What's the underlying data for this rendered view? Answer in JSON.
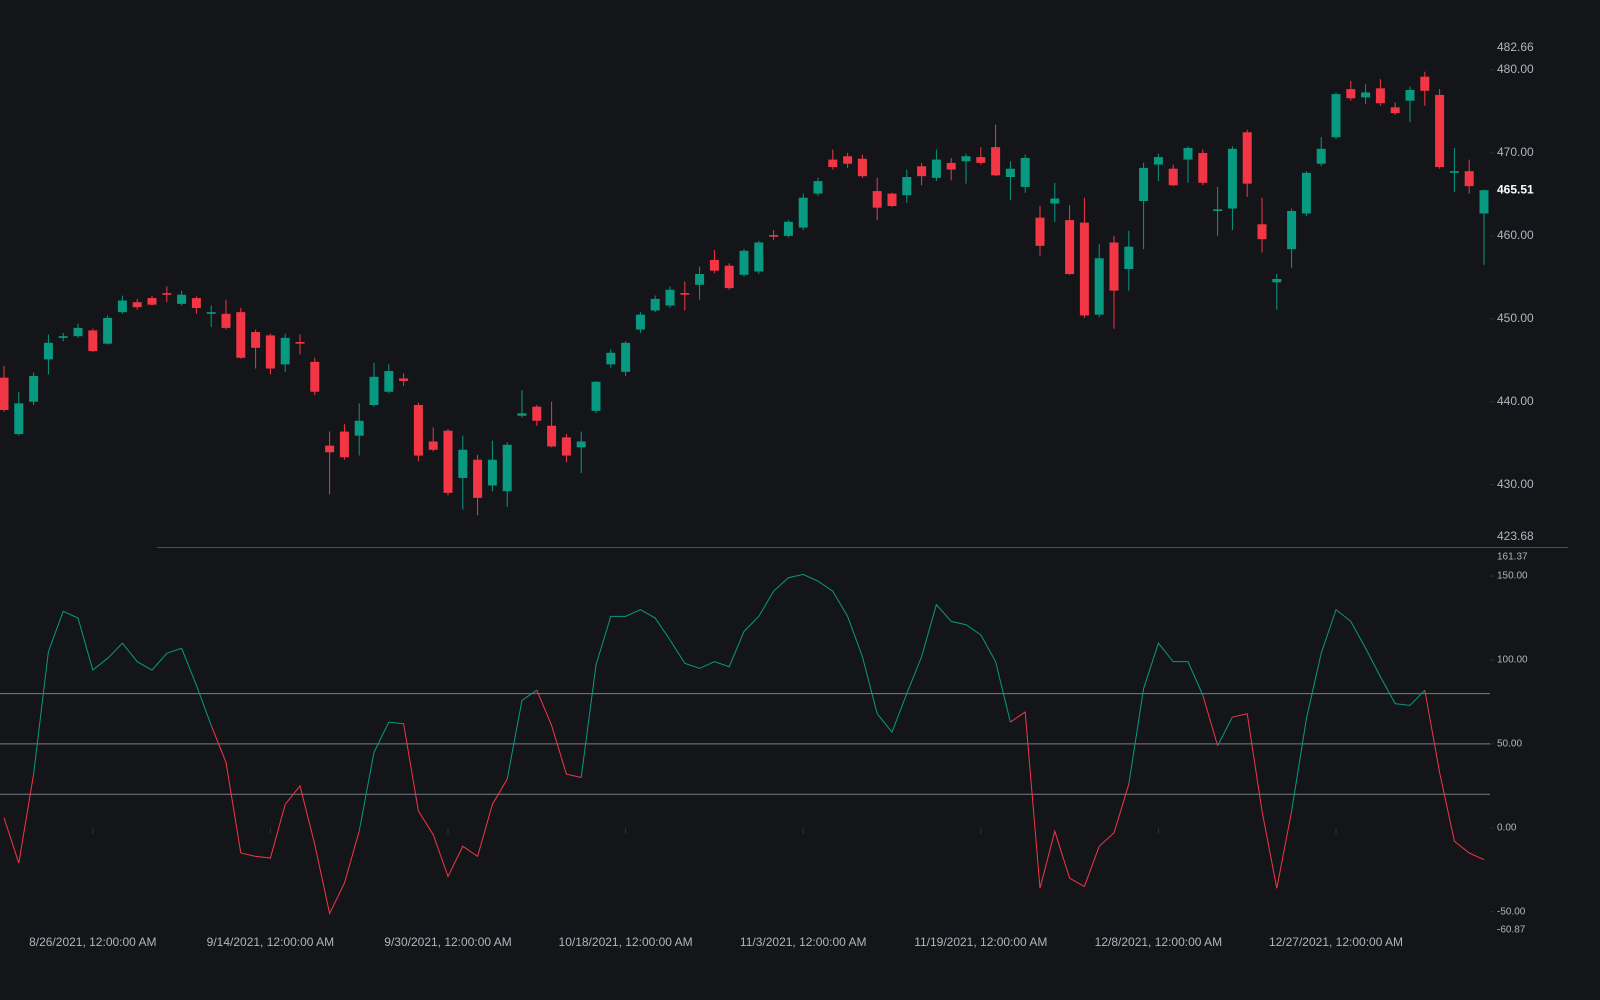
{
  "chart_data": [
    {
      "type": "candlestick",
      "up_color": "#089981",
      "down_color": "#f23645",
      "ylim": [
        423.68,
        482.66
      ],
      "yticks": [
        {
          "value": 430,
          "label": "430.00"
        },
        {
          "value": 440,
          "label": "440.00"
        },
        {
          "value": 450,
          "label": "450.00"
        },
        {
          "value": 460,
          "label": "460.00"
        },
        {
          "value": 470,
          "label": "470.00"
        },
        {
          "value": 480,
          "label": "480.00"
        }
      ],
      "categories": [
        null,
        null,
        null,
        null,
        null,
        null,
        "8/26/2021, 12:00:00 AM",
        null,
        null,
        null,
        null,
        null,
        null,
        null,
        null,
        null,
        null,
        null,
        "9/14/2021, 12:00:00 AM",
        null,
        null,
        null,
        null,
        null,
        null,
        null,
        null,
        null,
        null,
        null,
        "9/30/2021, 12:00:00 AM",
        null,
        null,
        null,
        null,
        null,
        null,
        null,
        null,
        null,
        null,
        null,
        "10/18/2021, 12:00:00 AM",
        null,
        null,
        null,
        null,
        null,
        null,
        null,
        null,
        null,
        null,
        null,
        "11/3/2021, 12:00:00 AM",
        null,
        null,
        null,
        null,
        null,
        null,
        null,
        null,
        null,
        null,
        null,
        "11/19/2021, 12:00:00 AM",
        null,
        null,
        null,
        null,
        null,
        null,
        null,
        null,
        null,
        null,
        null,
        "12/8/2021, 12:00:00 AM",
        null,
        null,
        null,
        null,
        null,
        null,
        null,
        null,
        null,
        null,
        null,
        "12/27/2021, 12:00:00 AM",
        null,
        null,
        null,
        null,
        null,
        null,
        null,
        null,
        null,
        null
      ],
      "open": [
        442.9,
        436.1,
        440.0,
        445.1,
        447.7,
        447.9,
        448.6,
        447.0,
        450.8,
        452.0,
        452.5,
        453.1,
        451.8,
        452.5,
        450.6,
        450.6,
        450.8,
        448.4,
        448.0,
        444.5,
        447.2,
        444.8,
        434.7,
        436.4,
        435.9,
        439.6,
        441.2,
        442.8,
        439.6,
        435.2,
        436.5,
        430.8,
        433.0,
        429.9,
        429.2,
        438.3,
        439.4,
        437.1,
        435.7,
        434.5,
        438.9,
        444.5,
        443.6,
        448.7,
        451.0,
        451.6,
        453.1,
        454.1,
        457.1,
        456.4,
        455.3,
        455.7,
        460.1,
        460.0,
        461.0,
        465.1,
        469.2,
        469.6,
        469.3,
        465.4,
        465.1,
        464.9,
        468.4,
        467.0,
        468.8,
        469.0,
        469.5,
        470.7,
        467.1,
        465.9,
        462.2,
        463.9,
        461.9,
        461.6,
        450.5,
        459.2,
        456.0,
        464.2,
        468.6,
        468.1,
        469.2,
        470.0,
        463.0,
        463.3,
        472.5,
        461.4,
        454.4,
        458.4,
        462.7,
        468.7,
        471.9,
        477.7,
        476.7,
        477.8,
        475.5,
        476.3,
        479.2,
        477.0,
        467.6,
        467.8,
        462.7
      ],
      "high": [
        444.3,
        441.2,
        443.5,
        448.1,
        448.3,
        449.4,
        448.8,
        450.4,
        452.8,
        452.4,
        452.8,
        453.9,
        453.4,
        452.7,
        451.6,
        452.3,
        451.3,
        448.7,
        448.2,
        448.2,
        448.1,
        445.3,
        436.4,
        437.3,
        439.8,
        444.7,
        444.5,
        443.4,
        439.9,
        436.9,
        436.7,
        435.9,
        433.6,
        435.3,
        435.1,
        441.4,
        439.6,
        440.0,
        436.1,
        436.4,
        442.5,
        446.3,
        447.3,
        450.8,
        452.8,
        453.9,
        454.5,
        456.3,
        458.3,
        456.7,
        458.4,
        459.4,
        460.7,
        461.9,
        465.1,
        467.0,
        470.4,
        470.0,
        469.8,
        467.0,
        465.2,
        468.0,
        468.8,
        470.4,
        469.4,
        469.9,
        470.7,
        473.4,
        469.0,
        469.8,
        463.6,
        466.4,
        463.7,
        464.6,
        459.0,
        460.0,
        460.6,
        468.8,
        469.9,
        468.6,
        470.8,
        470.4,
        465.9,
        470.8,
        472.8,
        464.6,
        455.4,
        463.3,
        467.8,
        471.9,
        477.3,
        478.7,
        478.3,
        478.9,
        476.1,
        478.0,
        479.8,
        477.7,
        470.6,
        469.2,
        465.6
      ],
      "low": [
        438.8,
        435.9,
        439.6,
        443.3,
        447.3,
        447.7,
        446.0,
        446.9,
        450.6,
        451.1,
        451.6,
        452.0,
        451.6,
        450.6,
        449.0,
        448.7,
        445.2,
        444.0,
        443.3,
        443.6,
        445.7,
        440.8,
        428.8,
        433.0,
        433.5,
        439.4,
        441.0,
        441.9,
        432.8,
        434.0,
        428.7,
        427.0,
        426.3,
        429.2,
        427.3,
        438.1,
        437.1,
        434.5,
        432.7,
        431.4,
        438.6,
        444.1,
        443.1,
        448.3,
        450.8,
        451.3,
        451.0,
        452.3,
        455.5,
        453.5,
        455.1,
        455.4,
        459.5,
        459.8,
        460.7,
        464.8,
        468.0,
        468.2,
        467.0,
        461.9,
        463.5,
        464.0,
        466.1,
        466.6,
        466.7,
        466.3,
        468.6,
        467.2,
        464.3,
        465.2,
        457.6,
        461.7,
        455.3,
        450.1,
        450.2,
        448.8,
        453.4,
        458.4,
        466.6,
        466.0,
        466.4,
        466.1,
        460.0,
        460.7,
        464.7,
        458.0,
        451.1,
        456.1,
        462.4,
        468.4,
        471.7,
        476.3,
        475.9,
        475.7,
        474.6,
        473.7,
        475.7,
        468.1,
        465.3,
        465.1,
        456.5
      ],
      "close": [
        439.0,
        439.8,
        443.1,
        447.1,
        447.9,
        448.9,
        446.1,
        450.1,
        452.2,
        451.4,
        451.7,
        452.9,
        452.9,
        451.3,
        450.8,
        448.9,
        445.3,
        446.5,
        444.0,
        447.7,
        447.0,
        441.2,
        433.9,
        433.3,
        437.7,
        443.0,
        443.7,
        442.5,
        433.5,
        434.2,
        429.0,
        434.2,
        428.4,
        433.0,
        434.8,
        438.6,
        437.7,
        434.6,
        433.5,
        435.2,
        442.4,
        445.9,
        447.1,
        450.5,
        452.4,
        453.5,
        452.9,
        455.4,
        455.8,
        453.7,
        458.2,
        459.2,
        459.9,
        461.7,
        464.6,
        466.6,
        468.3,
        468.7,
        467.2,
        463.4,
        463.6,
        467.1,
        467.2,
        469.2,
        468.0,
        469.6,
        468.8,
        467.3,
        468.1,
        469.4,
        458.8,
        464.5,
        455.4,
        450.4,
        457.3,
        453.4,
        458.7,
        468.2,
        469.5,
        466.1,
        470.6,
        466.4,
        463.2,
        470.5,
        466.3,
        459.6,
        454.8,
        463.0,
        467.6,
        470.5,
        477.1,
        476.6,
        477.3,
        476.0,
        474.8,
        477.6,
        477.5,
        468.3,
        467.8,
        466.0,
        465.51
      ]
    },
    {
      "type": "line",
      "ylim": [
        -60.87,
        161.37
      ],
      "yticks": [
        {
          "value": -50,
          "label": "-50.00"
        },
        {
          "value": 0,
          "label": "0.00"
        },
        {
          "value": 50,
          "label": "50.00"
        },
        {
          "value": 100,
          "label": "100.00"
        },
        {
          "value": 150,
          "label": "150.00"
        }
      ],
      "levels": [
        80,
        50,
        20
      ],
      "level_color": "#787b86",
      "values": [
        6,
        -21,
        32,
        105,
        129,
        125,
        94,
        101,
        110,
        99,
        94,
        104,
        107,
        85,
        61,
        39,
        -15,
        -17,
        -18,
        14,
        25,
        -10,
        -51,
        -33,
        -2,
        45,
        63,
        62,
        10,
        -4,
        -29,
        -11,
        -17,
        14,
        29,
        76,
        82,
        61,
        32,
        30,
        97,
        126,
        126,
        130,
        125,
        112,
        98,
        95,
        99,
        96,
        117,
        126,
        141,
        149,
        151,
        147,
        141,
        126,
        102,
        68,
        57,
        80,
        102,
        133,
        123,
        121,
        115,
        99,
        63,
        69,
        -36,
        -2,
        -30,
        -35,
        -11,
        -3,
        26,
        83,
        110,
        99,
        99,
        79,
        49,
        66,
        68,
        10,
        -36,
        10,
        65,
        104,
        130,
        123,
        107,
        90,
        74,
        73,
        82,
        33,
        -8,
        -15,
        -19
      ],
      "colors": [
        "#f23645",
        "#f23645",
        "#f23645",
        "#089981",
        "#089981",
        "#089981",
        "#089981",
        "#089981",
        "#089981",
        "#089981",
        "#089981",
        "#089981",
        "#089981",
        "#089981",
        "#089981",
        "#f23645",
        "#f23645",
        "#f23645",
        "#f23645",
        "#f23645",
        "#f23645",
        "#f23645",
        "#f23645",
        "#f23645",
        "#f23645",
        "#089981",
        "#089981",
        "#089981",
        "#f23645",
        "#f23645",
        "#f23645",
        "#f23645",
        "#f23645",
        "#f23645",
        "#f23645",
        "#089981",
        "#089981",
        "#f23645",
        "#f23645",
        "#f23645",
        "#089981",
        "#089981",
        "#089981",
        "#089981",
        "#089981",
        "#089981",
        "#089981",
        "#089981",
        "#089981",
        "#089981",
        "#089981",
        "#089981",
        "#089981",
        "#089981",
        "#089981",
        "#089981",
        "#089981",
        "#089981",
        "#089981",
        "#089981",
        "#089981",
        "#089981",
        "#089981",
        "#089981",
        "#089981",
        "#089981",
        "#089981",
        "#089981",
        "#089981",
        "#f23645",
        "#f23645",
        "#f23645",
        "#f23645",
        "#f23645",
        "#f23645",
        "#f23645",
        "#f23645",
        "#089981",
        "#089981",
        "#089981",
        "#089981",
        "#089981",
        "#f23645",
        "#089981",
        "#f23645",
        "#f23645",
        "#f23645",
        "#f23645",
        "#089981",
        "#089981",
        "#089981",
        "#089981",
        "#089981",
        "#089981",
        "#089981",
        "#089981",
        "#089981",
        "#f23645",
        "#f23645",
        "#f23645",
        "#f23645"
      ]
    }
  ]
}
